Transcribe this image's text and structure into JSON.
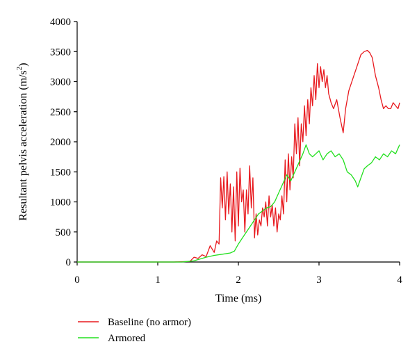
{
  "chart_data": {
    "type": "line",
    "title": "",
    "xlabel": "Time (ms)",
    "ylabel": "Resultant pelvis acceleration (m/s",
    "ylabel_superscript": "2",
    "ylabel_close": ")",
    "xlim": [
      0,
      4
    ],
    "ylim": [
      0,
      4000
    ],
    "x_ticks": [
      0,
      1,
      2,
      3,
      4
    ],
    "y_ticks": [
      0,
      500,
      1000,
      1500,
      2000,
      2500,
      3000,
      3500,
      4000
    ],
    "grid": false,
    "legend_position": "bottom-left",
    "series": [
      {
        "name": "Baseline (no armor)",
        "color": "#e8191e",
        "points": [
          [
            0,
            0
          ],
          [
            1.2,
            0
          ],
          [
            1.4,
            10
          ],
          [
            1.45,
            80
          ],
          [
            1.5,
            60
          ],
          [
            1.55,
            120
          ],
          [
            1.6,
            90
          ],
          [
            1.65,
            270
          ],
          [
            1.7,
            160
          ],
          [
            1.73,
            350
          ],
          [
            1.76,
            300
          ],
          [
            1.78,
            1400
          ],
          [
            1.8,
            900
          ],
          [
            1.82,
            1420
          ],
          [
            1.84,
            700
          ],
          [
            1.86,
            1500
          ],
          [
            1.88,
            800
          ],
          [
            1.9,
            1300
          ],
          [
            1.92,
            500
          ],
          [
            1.94,
            1250
          ],
          [
            1.96,
            350
          ],
          [
            1.98,
            1500
          ],
          [
            2.0,
            600
          ],
          [
            2.02,
            1560
          ],
          [
            2.04,
            1000
          ],
          [
            2.06,
            1200
          ],
          [
            2.08,
            500
          ],
          [
            2.1,
            1200
          ],
          [
            2.12,
            800
          ],
          [
            2.14,
            1600
          ],
          [
            2.16,
            900
          ],
          [
            2.18,
            1400
          ],
          [
            2.2,
            400
          ],
          [
            2.22,
            800
          ],
          [
            2.24,
            450
          ],
          [
            2.26,
            700
          ],
          [
            2.28,
            600
          ],
          [
            2.3,
            900
          ],
          [
            2.32,
            750
          ],
          [
            2.34,
            1000
          ],
          [
            2.36,
            600
          ],
          [
            2.38,
            1100
          ],
          [
            2.4,
            750
          ],
          [
            2.42,
            950
          ],
          [
            2.44,
            600
          ],
          [
            2.46,
            900
          ],
          [
            2.48,
            500
          ],
          [
            2.5,
            800
          ],
          [
            2.52,
            700
          ],
          [
            2.54,
            1100
          ],
          [
            2.56,
            800
          ],
          [
            2.58,
            1700
          ],
          [
            2.6,
            1000
          ],
          [
            2.62,
            1800
          ],
          [
            2.64,
            1200
          ],
          [
            2.66,
            1750
          ],
          [
            2.68,
            1400
          ],
          [
            2.7,
            2300
          ],
          [
            2.72,
            1800
          ],
          [
            2.74,
            2400
          ],
          [
            2.76,
            1600
          ],
          [
            2.78,
            2300
          ],
          [
            2.8,
            2000
          ],
          [
            2.82,
            2600
          ],
          [
            2.84,
            2100
          ],
          [
            2.86,
            2700
          ],
          [
            2.88,
            2300
          ],
          [
            2.9,
            2900
          ],
          [
            2.92,
            2600
          ],
          [
            2.94,
            3100
          ],
          [
            2.96,
            2700
          ],
          [
            2.98,
            3300
          ],
          [
            3.0,
            2900
          ],
          [
            3.02,
            3250
          ],
          [
            3.04,
            3000
          ],
          [
            3.06,
            3200
          ],
          [
            3.08,
            2900
          ],
          [
            3.1,
            3100
          ],
          [
            3.12,
            2800
          ],
          [
            3.15,
            2650
          ],
          [
            3.18,
            2550
          ],
          [
            3.22,
            2700
          ],
          [
            3.26,
            2400
          ],
          [
            3.3,
            2150
          ],
          [
            3.33,
            2550
          ],
          [
            3.37,
            2850
          ],
          [
            3.42,
            3050
          ],
          [
            3.47,
            3250
          ],
          [
            3.52,
            3450
          ],
          [
            3.56,
            3500
          ],
          [
            3.6,
            3520
          ],
          [
            3.63,
            3480
          ],
          [
            3.66,
            3400
          ],
          [
            3.7,
            3100
          ],
          [
            3.74,
            2900
          ],
          [
            3.77,
            2700
          ],
          [
            3.8,
            2550
          ],
          [
            3.83,
            2600
          ],
          [
            3.86,
            2550
          ],
          [
            3.89,
            2550
          ],
          [
            3.92,
            2650
          ],
          [
            3.95,
            2600
          ],
          [
            3.98,
            2550
          ],
          [
            4.0,
            2650
          ]
        ]
      },
      {
        "name": "Armored",
        "color": "#22e01e",
        "points": [
          [
            0,
            0
          ],
          [
            1.3,
            0
          ],
          [
            1.45,
            20
          ],
          [
            1.5,
            40
          ],
          [
            1.6,
            80
          ],
          [
            1.7,
            110
          ],
          [
            1.8,
            130
          ],
          [
            1.9,
            150
          ],
          [
            1.95,
            180
          ],
          [
            2.0,
            300
          ],
          [
            2.05,
            400
          ],
          [
            2.1,
            500
          ],
          [
            2.15,
            600
          ],
          [
            2.2,
            700
          ],
          [
            2.25,
            800
          ],
          [
            2.3,
            850
          ],
          [
            2.35,
            900
          ],
          [
            2.4,
            920
          ],
          [
            2.45,
            1000
          ],
          [
            2.5,
            1150
          ],
          [
            2.55,
            1300
          ],
          [
            2.6,
            1450
          ],
          [
            2.65,
            1350
          ],
          [
            2.7,
            1500
          ],
          [
            2.75,
            1650
          ],
          [
            2.8,
            1800
          ],
          [
            2.84,
            1950
          ],
          [
            2.88,
            1800
          ],
          [
            2.92,
            1750
          ],
          [
            2.96,
            1800
          ],
          [
            3.0,
            1850
          ],
          [
            3.05,
            1700
          ],
          [
            3.1,
            1800
          ],
          [
            3.15,
            1850
          ],
          [
            3.2,
            1750
          ],
          [
            3.25,
            1800
          ],
          [
            3.3,
            1700
          ],
          [
            3.35,
            1500
          ],
          [
            3.4,
            1450
          ],
          [
            3.45,
            1350
          ],
          [
            3.48,
            1250
          ],
          [
            3.52,
            1400
          ],
          [
            3.56,
            1550
          ],
          [
            3.6,
            1600
          ],
          [
            3.65,
            1650
          ],
          [
            3.7,
            1750
          ],
          [
            3.75,
            1700
          ],
          [
            3.8,
            1800
          ],
          [
            3.85,
            1750
          ],
          [
            3.9,
            1850
          ],
          [
            3.95,
            1800
          ],
          [
            4.0,
            1950
          ]
        ]
      }
    ]
  }
}
